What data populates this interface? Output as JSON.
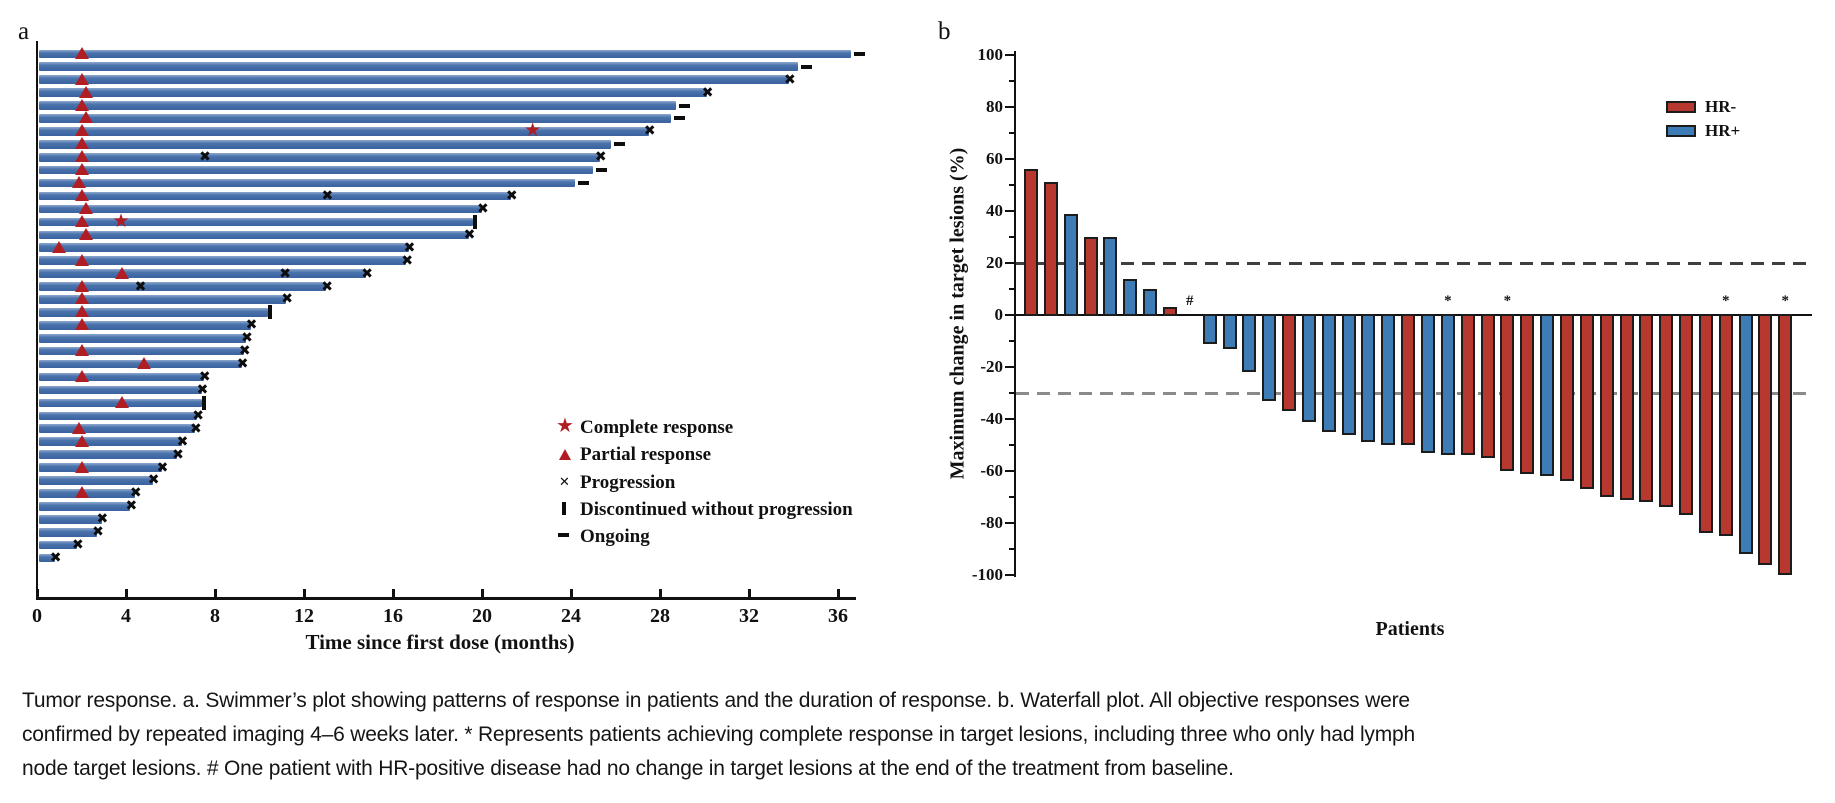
{
  "panel_labels": {
    "a": "a",
    "b": "b"
  },
  "colors": {
    "swimmer_bar_blue": "#3e69a8",
    "response_red": "#b01e24",
    "marker_black": "#0d0d0d",
    "waterfall_red": "#b7382f",
    "waterfall_blue": "#3d7cb5",
    "dash_20_line": "#3f3f3f",
    "dash_minus30_line": "#8a8a8a"
  },
  "chart_data": [
    {
      "type": "bar",
      "panel": "a",
      "orientation": "horizontal",
      "xlabel": "Time since first dose (months)",
      "xlim": [
        0,
        37
      ],
      "x_ticks": [
        0,
        4,
        8,
        12,
        16,
        20,
        24,
        28,
        32,
        36
      ],
      "legend": [
        {
          "icon": "star",
          "label": "Complete response"
        },
        {
          "icon": "triangle",
          "label": "Partial response"
        },
        {
          "icon": "cross",
          "label": "Progression"
        },
        {
          "icon": "bar",
          "label": "Discontinued without progression"
        },
        {
          "icon": "dash",
          "label": "Ongoing"
        }
      ],
      "marker_meaning": {
        "t": "partial response (months)",
        "s": "complete response (months)",
        "x": "progression events mid-bar (months)",
        "end": "end marker: x=progression, ongoing, disc=discontinued without progression"
      },
      "patients": [
        {
          "d": 36.6,
          "t": 2.0,
          "end": "ongoing"
        },
        {
          "d": 34.2,
          "end": "ongoing"
        },
        {
          "d": 33.8,
          "t": 2.0,
          "end": "x"
        },
        {
          "d": 30.1,
          "t": 2.2,
          "end": "x"
        },
        {
          "d": 28.7,
          "t": 2.0,
          "end": "ongoing"
        },
        {
          "d": 28.5,
          "t": 2.2,
          "end": "ongoing"
        },
        {
          "d": 27.5,
          "t": 2.0,
          "s": 22.3,
          "end": "x"
        },
        {
          "d": 25.8,
          "t": 2.0,
          "end": "ongoing"
        },
        {
          "d": 25.3,
          "t": 2.0,
          "x": [
            7.6
          ],
          "end": "x"
        },
        {
          "d": 25.0,
          "t": 2.0,
          "end": "ongoing"
        },
        {
          "d": 24.2,
          "t": 1.9,
          "end": "ongoing"
        },
        {
          "d": 21.3,
          "t": 2.0,
          "x": [
            13.1
          ],
          "end": "x"
        },
        {
          "d": 20.0,
          "t": 2.2,
          "end": "x"
        },
        {
          "d": 19.6,
          "t": 2.0,
          "s": 3.8,
          "end": "disc"
        },
        {
          "d": 19.4,
          "t": 2.2,
          "end": "x"
        },
        {
          "d": 16.7,
          "t": 1.0,
          "end": "x"
        },
        {
          "d": 16.6,
          "t": 2.0,
          "end": "x"
        },
        {
          "d": 14.8,
          "t": 3.8,
          "x": [
            11.2
          ],
          "end": "x"
        },
        {
          "d": 13.0,
          "t": 2.0,
          "x": [
            4.7
          ],
          "end": "x"
        },
        {
          "d": 11.2,
          "t": 2.0,
          "end": "x"
        },
        {
          "d": 10.4,
          "t": 2.0,
          "end": "disc"
        },
        {
          "d": 9.6,
          "t": 2.0,
          "end": "x"
        },
        {
          "d": 9.4,
          "end": "x"
        },
        {
          "d": 9.3,
          "t": 2.0,
          "end": "x"
        },
        {
          "d": 9.2,
          "t": 4.8,
          "end": "x"
        },
        {
          "d": 7.5,
          "t": 2.0,
          "end": "x"
        },
        {
          "d": 7.4,
          "end": "x"
        },
        {
          "d": 7.4,
          "t": 3.8,
          "end": "disc"
        },
        {
          "d": 7.2,
          "end": "x"
        },
        {
          "d": 7.1,
          "t": 1.9,
          "end": "x"
        },
        {
          "d": 6.5,
          "t": 2.0,
          "end": "x"
        },
        {
          "d": 6.3,
          "end": "x"
        },
        {
          "d": 5.6,
          "t": 2.0,
          "end": "x"
        },
        {
          "d": 5.2,
          "end": "x"
        },
        {
          "d": 4.4,
          "t": 2.0,
          "end": "x"
        },
        {
          "d": 4.2,
          "end": "x"
        },
        {
          "d": 2.9,
          "end": "x"
        },
        {
          "d": 2.7,
          "end": "x"
        },
        {
          "d": 1.8,
          "end": "x"
        },
        {
          "d": 0.8,
          "end": "x"
        }
      ]
    },
    {
      "type": "bar",
      "panel": "b",
      "xlabel": "Patients",
      "ylabel": "Maximum change in target lesions (%)",
      "ylim": [
        -100,
        100
      ],
      "y_ticks": [
        100,
        80,
        60,
        40,
        20,
        0,
        -20,
        -40,
        -60,
        -80,
        -100
      ],
      "reference_lines": [
        {
          "y": 20,
          "style": "dashed",
          "color": "#3f3f3f"
        },
        {
          "y": -30,
          "style": "dashed",
          "color": "#8a8a8a"
        }
      ],
      "legend": [
        {
          "label": "HR-",
          "color": "#b7382f"
        },
        {
          "label": "HR+",
          "color": "#3d7cb5"
        }
      ],
      "values": [
        56,
        51,
        39,
        30,
        30,
        14,
        10,
        3,
        0,
        -11,
        -13,
        -22,
        -33,
        -37,
        -41,
        -45,
        -46,
        -49,
        -50,
        -50,
        -53,
        -54,
        -54,
        -55,
        -60,
        -61,
        -62,
        -64,
        -67,
        -70,
        -71,
        -72,
        -74,
        -77,
        -84,
        -85,
        -92,
        -96,
        -100
      ],
      "hr_status": [
        "HR-",
        "HR-",
        "HR+",
        "HR-",
        "HR+",
        "HR+",
        "HR+",
        "HR-",
        "HR+",
        "HR+",
        "HR+",
        "HR+",
        "HR+",
        "HR-",
        "HR+",
        "HR+",
        "HR+",
        "HR+",
        "HR+",
        "HR-",
        "HR+",
        "HR+",
        "HR-",
        "HR-",
        "HR-",
        "HR-",
        "HR+",
        "HR-",
        "HR-",
        "HR-",
        "HR-",
        "HR-",
        "HR-",
        "HR-",
        "HR-",
        "HR-",
        "HR+",
        "HR-",
        "HR-"
      ],
      "annotations": [
        {
          "index": 9,
          "symbol": "#"
        },
        {
          "index": 22,
          "symbol": "*"
        },
        {
          "index": 25,
          "symbol": "*"
        },
        {
          "index": 36,
          "symbol": "*"
        },
        {
          "index": 39,
          "symbol": "*"
        }
      ]
    }
  ],
  "caption": {
    "lines": [
      "Tumor response. a. Swimmer’s plot showing patterns of response in patients and the duration of response. b. Waterfall plot. All objective responses were",
      "confirmed by repeated imaging 4–6 weeks later. * Represents patients achieving complete response in target lesions, including three who only had lymph",
      "node target lesions. # One patient with HR-positive disease had no change in target lesions at the end of the treatment from baseline."
    ]
  }
}
